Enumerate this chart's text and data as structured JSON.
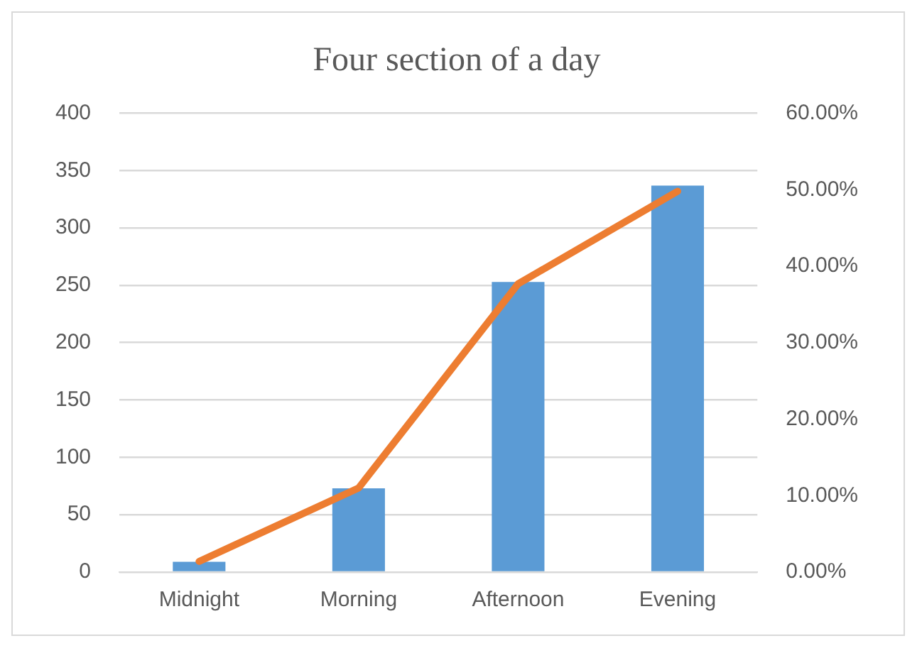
{
  "chart_data": {
    "type": "bar",
    "title": "Four section of a day",
    "categories": [
      "Midnight",
      "Morning",
      "Afternoon",
      "Evening"
    ],
    "series": [
      {
        "color": "#5b9bd5",
        "values": [
          9,
          73,
          253,
          337
        ]
      },
      {
        "type": "line",
        "axis": "y2",
        "color": "#ed7d31",
        "values": [
          1.4,
          11,
          37.7,
          49.8
        ],
        "marker": "none"
      }
    ],
    "ylim": [
      0,
      400
    ],
    "yticks": [
      0,
      50,
      100,
      150,
      200,
      250,
      300,
      350,
      400
    ],
    "y2lim": [
      0,
      60
    ],
    "y2ticks": [
      {
        "value": 0,
        "label": "0.00%"
      },
      {
        "value": 10,
        "label": "10.00%"
      },
      {
        "value": 20,
        "label": "20.00%"
      },
      {
        "value": 30,
        "label": "30.00%"
      },
      {
        "value": 40,
        "label": "40.00%"
      },
      {
        "value": 50,
        "label": "50.00%"
      },
      {
        "value": 60,
        "label": "60.00%"
      }
    ],
    "grid": "y",
    "legend": false
  }
}
